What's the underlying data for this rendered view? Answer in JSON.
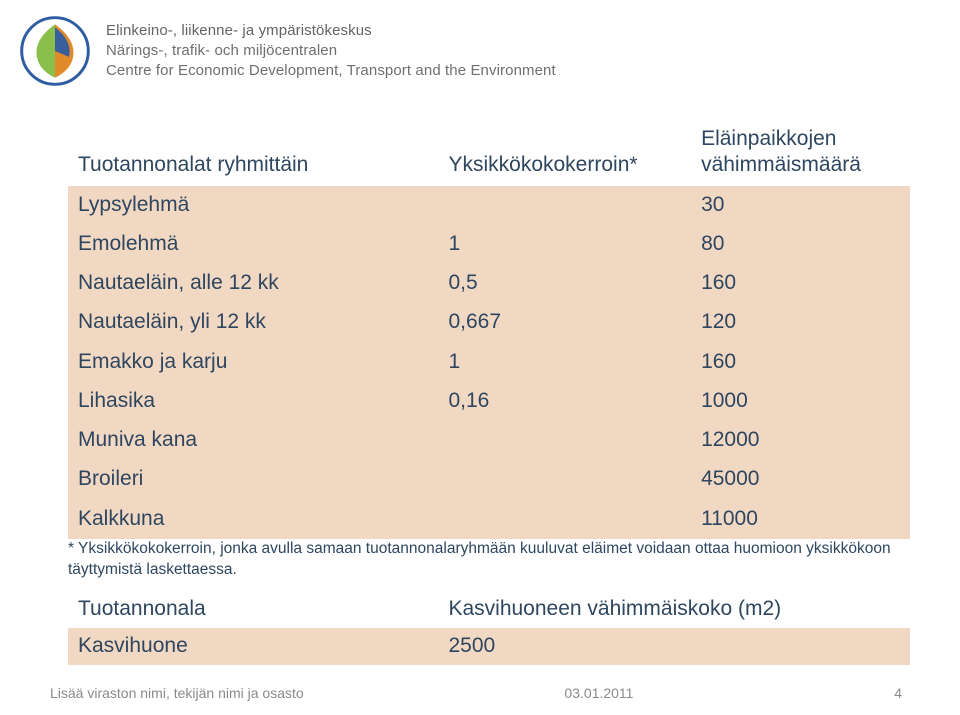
{
  "org_lines": [
    "Elinkeino-, liikenne- ja ympäristökeskus",
    "Närings-, trafik- och miljöcentralen",
    "Centre for Economic Development, Transport and the Environment"
  ],
  "table": {
    "headers": {
      "c0": "Tuotannonalat ryhmittäin",
      "c1": "Yksikkökokokerroin*",
      "c2_line1": "Eläinpaikkojen",
      "c2_line2": "vähimmäismäärä"
    },
    "rows": [
      {
        "c0": "Lypsylehmä",
        "c1": "",
        "c2": "30"
      },
      {
        "c0": "Emolehmä",
        "c1": "1",
        "c2": "80"
      },
      {
        "c0": "Nautaeläin, alle 12 kk",
        "c1": "0,5",
        "c2": "160"
      },
      {
        "c0": "Nautaeläin, yli 12 kk",
        "c1": "0,667",
        "c2": "120"
      },
      {
        "c0": "Emakko ja karju",
        "c1": "1",
        "c2": "160"
      },
      {
        "c0": "Lihasika",
        "c1": "0,16",
        "c2": "1000"
      },
      {
        "c0": "Muniva kana",
        "c1": "",
        "c2": "12000"
      },
      {
        "c0": "Broileri",
        "c1": "",
        "c2": "45000"
      },
      {
        "c0": "Kalkkuna",
        "c1": "",
        "c2": "11000"
      }
    ],
    "band_color": "#f1d8c3",
    "text_color": "#2e465f"
  },
  "footnote": "* Yksikkökokokerroin, jonka avulla samaan tuotannonalaryhmään kuuluvat eläimet voidaan ottaa huomioon yksikkökoon täyttymistä laskettaessa.",
  "bottom_table": {
    "rows": [
      {
        "c0": "Tuotannonala",
        "c1": "Kasvihuoneen vähimmäiskoko (m2)",
        "band": false
      },
      {
        "c0": "Kasvihuone",
        "c1": "2500",
        "band": true
      }
    ]
  },
  "footer": {
    "left": "Lisää viraston nimi, tekijän nimi ja osasto",
    "date": "03.01.2011",
    "page": "4"
  },
  "logo_colors": {
    "blue": "#2e5da1",
    "green": "#8bbf4b",
    "orange": "#e08a2a",
    "ring": "#2e5da1"
  }
}
